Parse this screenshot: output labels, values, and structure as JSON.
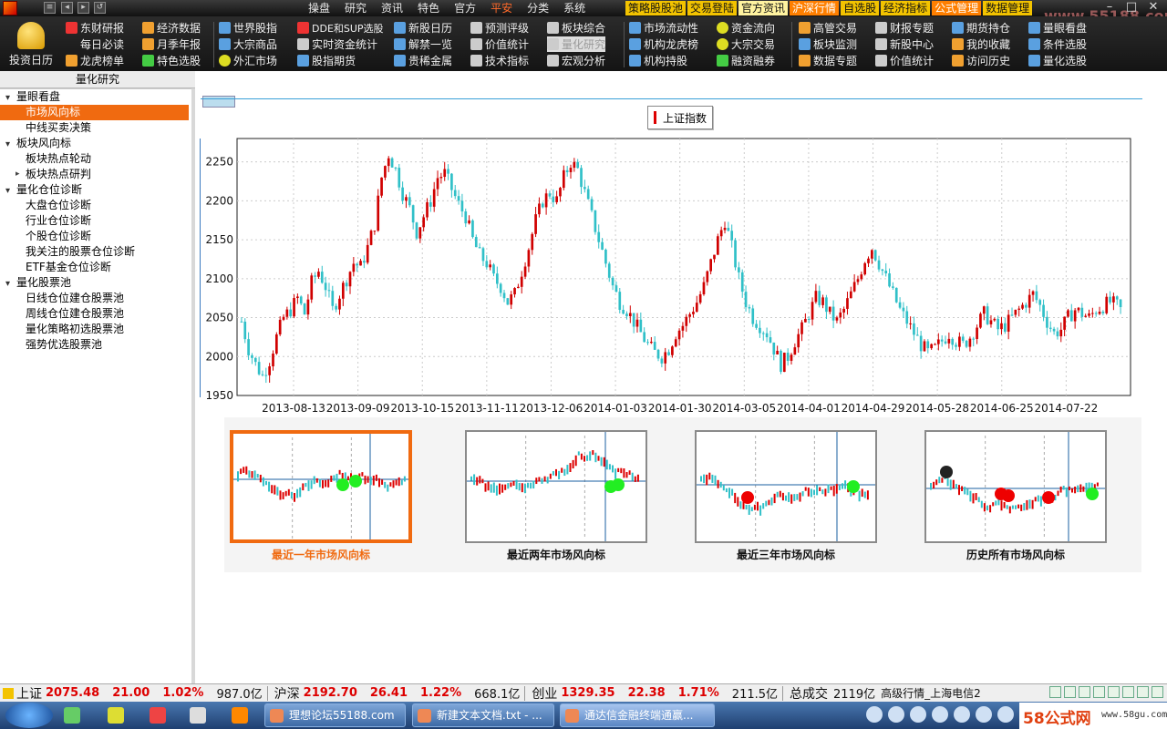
{
  "titlebar": {
    "menu": [
      "操盘",
      "研究",
      "资讯",
      "特色",
      "官方",
      "平安",
      "分类",
      "系统"
    ],
    "active_menu": "平安",
    "highlight_menu": [
      "策略股股池",
      "交易登陆",
      "官方资讯",
      "沪深行情",
      "自选股",
      "经济指标",
      "公式管理",
      "数据管理"
    ],
    "watermark": "www.55188.com"
  },
  "toolbar": {
    "big_button": "投资日历",
    "col1": [
      "东财研报",
      "每日必读",
      "龙虎榜单"
    ],
    "col2": [
      "经济数据",
      "月季年报",
      "特色选股"
    ],
    "col3": [
      "世界股指",
      "大宗商品",
      "外汇市场"
    ],
    "col4": [
      "DDE和SUP选股",
      "实时资金统计",
      "股指期货"
    ],
    "col5": [
      "新股日历",
      "解禁一览",
      "贵稀金属"
    ],
    "col6": [
      "预测评级",
      "价值统计",
      "技术指标"
    ],
    "col7": [
      "板块综合",
      "量化研究",
      "宏观分析"
    ],
    "col8": [
      "市场流动性",
      "机构龙虎榜",
      "机构持股"
    ],
    "col9": [
      "资金流向",
      "大宗交易",
      "融资融券"
    ],
    "col10": [
      "高管交易",
      "板块监测",
      "数据专题"
    ],
    "col11": [
      "财报专题",
      "新股中心",
      "价值统计"
    ],
    "col12": [
      "期货持仓",
      "我的收藏",
      "访问历史"
    ],
    "col13": [
      "量眼看盘",
      "条件选股",
      "量化选股"
    ]
  },
  "sidebar": {
    "header": "量化研究",
    "nodes": [
      {
        "label": "量眼看盘",
        "level": 0
      },
      {
        "label": "市场风向标",
        "level": 1,
        "selected": true
      },
      {
        "label": "中线买卖决策",
        "level": 1
      },
      {
        "label": "板块风向标",
        "level": 0
      },
      {
        "label": "板块热点轮动",
        "level": 1
      },
      {
        "label": "板块热点研判",
        "level": 1,
        "expandable": true
      },
      {
        "label": "量化仓位诊断",
        "level": 0
      },
      {
        "label": "大盘仓位诊断",
        "level": 1
      },
      {
        "label": "行业仓位诊断",
        "level": 1
      },
      {
        "label": "个股仓位诊断",
        "level": 1
      },
      {
        "label": "我关注的股票仓位诊断",
        "level": 1
      },
      {
        "label": "ETF基金仓位诊断",
        "level": 1
      },
      {
        "label": "量化股票池",
        "level": 0
      },
      {
        "label": "日线仓位建仓股票池",
        "level": 1
      },
      {
        "label": "周线仓位建仓股票池",
        "level": 1
      },
      {
        "label": "量化策略初选股票池",
        "level": 1
      },
      {
        "label": "强势优选股票池",
        "level": 1
      }
    ]
  },
  "chart_data": {
    "type": "candlestick",
    "legend": "上证指数",
    "legend_color": "#d00000",
    "up_color": "#d00000",
    "down_color": "#30c0c8",
    "ylim": [
      1950,
      2280
    ],
    "yticks": [
      1950,
      2000,
      2050,
      2100,
      2150,
      2200,
      2250
    ],
    "xtick_labels": [
      "2013-08-13",
      "2013-09-09",
      "2013-10-15",
      "2013-11-11",
      "2013-12-06",
      "2014-01-03",
      "2014-01-30",
      "2014-03-05",
      "2014-04-01",
      "2014-04-29",
      "2014-05-28",
      "2014-06-25",
      "2014-07-22"
    ],
    "grid": true,
    "closes": [
      2045,
      2010,
      1990,
      1975,
      1995,
      2025,
      2050,
      2060,
      2075,
      2055,
      2095,
      2110,
      2090,
      2060,
      2080,
      2100,
      2120,
      2115,
      2140,
      2170,
      2230,
      2260,
      2240,
      2210,
      2190,
      2160,
      2180,
      2200,
      2230,
      2235,
      2215,
      2195,
      2180,
      2150,
      2130,
      2120,
      2100,
      2090,
      2070,
      2080,
      2110,
      2140,
      2175,
      2200,
      2210,
      2200,
      2230,
      2250,
      2240,
      2210,
      2180,
      2150,
      2120,
      2090,
      2070,
      2060,
      2045,
      2030,
      2015,
      2005,
      2000,
      2010,
      2030,
      2040,
      2055,
      2070,
      2090,
      2120,
      2150,
      2175,
      2140,
      2100,
      2070,
      2050,
      2040,
      2030,
      2010,
      1990,
      2000,
      2020,
      2035,
      2055,
      2075,
      2070,
      2055,
      2045,
      2060,
      2080,
      2100,
      2125,
      2140,
      2120,
      2100,
      2080,
      2060,
      2045,
      2030,
      2015,
      2005,
      2010,
      2020,
      2030,
      2020,
      2015,
      2025,
      2040,
      2055,
      2045,
      2035,
      2040,
      2050,
      2060,
      2070,
      2080,
      2065,
      2045,
      2030,
      2035,
      2050,
      2060,
      2055,
      2050,
      2060,
      2065,
      2070,
      2065,
      2055
    ],
    "thumbnails": [
      {
        "label": "最近一年市场风向标",
        "active": true
      },
      {
        "label": "最近两年市场风向标",
        "active": false
      },
      {
        "label": "最近三年市场风向标",
        "active": false
      },
      {
        "label": "历史所有市场风向标",
        "active": false
      }
    ]
  },
  "statusbar": {
    "sh_label": "上证",
    "sh_value": "2075.48",
    "sh_change": "21.00",
    "sh_pct": "1.02%",
    "sh_vol": "987.0亿",
    "hs_label": "沪深",
    "hs_value": "2192.70",
    "hs_change": "26.41",
    "hs_pct": "1.22%",
    "hs_vol": "668.1亿",
    "cy_label": "创业",
    "cy_value": "1329.35",
    "cy_change": "22.38",
    "cy_pct": "1.71%",
    "cy_vol": "211.5亿",
    "total_label": "总成交",
    "total_value": "2119亿",
    "feed": "高级行情_上海电信2"
  },
  "taskbar": {
    "tasks": [
      "理想论坛55188.com",
      "新建文本文档.txt - ...",
      "通达信金融终端通赢..."
    ],
    "brand": "58公式网",
    "brand_url": "www.58gu.com"
  }
}
